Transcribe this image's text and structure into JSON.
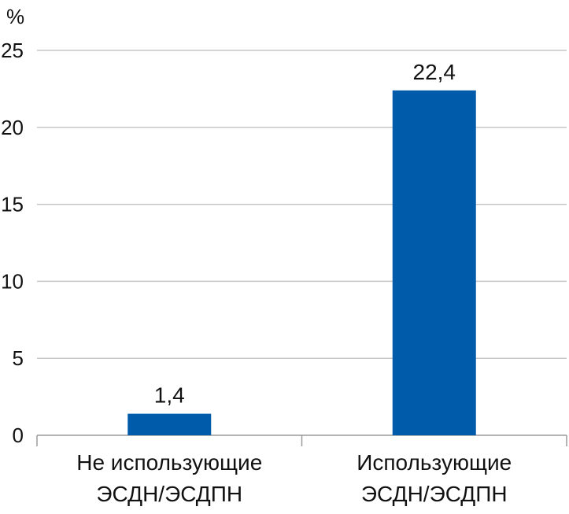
{
  "chart_data": {
    "type": "bar",
    "unit": "%",
    "categories": [
      [
        "Не использующие",
        "ЭСДН/ЭСДПН"
      ],
      [
        "Использующие",
        "ЭСДН/ЭСДПН"
      ]
    ],
    "values": [
      1.4,
      22.4
    ],
    "value_labels": [
      "1,4",
      "22,4"
    ],
    "y_ticks": [
      "0",
      "5",
      "10",
      "15",
      "20",
      "25"
    ],
    "ylim": [
      0,
      25
    ],
    "grid": true,
    "bar_color": "#005baa",
    "legend": "none"
  }
}
